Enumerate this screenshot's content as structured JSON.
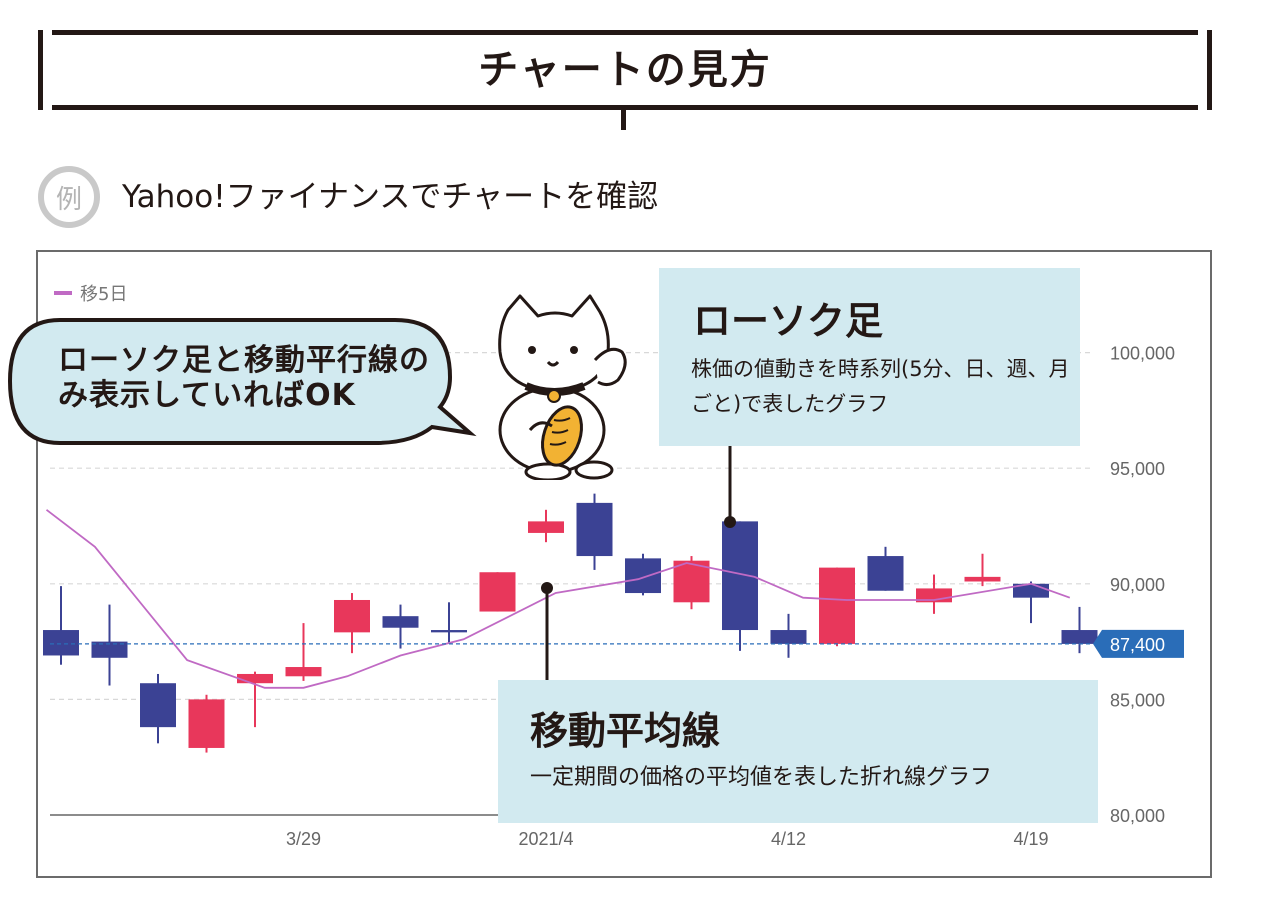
{
  "header": {
    "title": "チャートの見方"
  },
  "example": {
    "badge": "例",
    "text": "Yahoo!ファイナンスでチャートを確認"
  },
  "speech_bubble": {
    "text": "ローソク足と移動平行線のみ表示していればOK"
  },
  "callouts": {
    "candlestick": {
      "title": "ローソク足",
      "description": "株価の値動きを時系列(5分、日、週、月ごと)で表したグラフ"
    },
    "moving_average": {
      "title": "移動平均線",
      "description": "一定期間の価格の平均値を表した折れ線グラフ"
    }
  },
  "colors": {
    "up": "#e8375b",
    "down": "#3b4294",
    "ma": "#c06ac4",
    "price_tag": "#2a6db8",
    "callout_bg": "#d2eaf0",
    "bubble_bg": "#d2eaf0"
  },
  "chart_data": {
    "type": "candlestick",
    "title": "",
    "legend": [
      "移5日"
    ],
    "ylim": [
      80000,
      101500
    ],
    "yticks": [
      80000,
      85000,
      90000,
      95000,
      100000
    ],
    "ytick_labels": [
      "80,000",
      "85,000",
      "90,000",
      "95,000",
      "100,000"
    ],
    "xtick_labels": [
      {
        "label": "3/29",
        "index": 5
      },
      {
        "label": "2021/4",
        "index": 10
      },
      {
        "label": "4/12",
        "index": 15
      },
      {
        "label": "4/19",
        "index": 20
      }
    ],
    "current_price": 87400,
    "current_price_label": "87,400",
    "candles": [
      {
        "open": 88000,
        "close": 86900,
        "high": 89900,
        "low": 86500
      },
      {
        "open": 87500,
        "close": 86800,
        "high": 89100,
        "low": 85600
      },
      {
        "open": 85700,
        "close": 83800,
        "high": 86100,
        "low": 83100
      },
      {
        "open": 82900,
        "close": 85000,
        "high": 85200,
        "low": 82700
      },
      {
        "open": 85700,
        "close": 86100,
        "high": 86200,
        "low": 83800
      },
      {
        "open": 86000,
        "close": 86400,
        "high": 88300,
        "low": 85800
      },
      {
        "open": 87900,
        "close": 89300,
        "high": 89600,
        "low": 87000
      },
      {
        "open": 88600,
        "close": 88100,
        "high": 89100,
        "low": 87200
      },
      {
        "open": 88000,
        "close": 87900,
        "high": 89200,
        "low": 87400
      },
      {
        "open": 88800,
        "close": 90500,
        "high": 90500,
        "low": 88800
      },
      {
        "open": 92200,
        "close": 92700,
        "high": 93200,
        "low": 91800
      },
      {
        "open": 93500,
        "close": 91200,
        "high": 93900,
        "low": 90600
      },
      {
        "open": 91100,
        "close": 89600,
        "high": 91300,
        "low": 89500
      },
      {
        "open": 89200,
        "close": 91000,
        "high": 91200,
        "low": 88900
      },
      {
        "open": 92700,
        "close": 88000,
        "high": 92700,
        "low": 87100
      },
      {
        "open": 88000,
        "close": 87400,
        "high": 88700,
        "low": 86800
      },
      {
        "open": 87400,
        "close": 90700,
        "high": 90700,
        "low": 87300
      },
      {
        "open": 91200,
        "close": 89700,
        "high": 91600,
        "low": 89700
      },
      {
        "open": 89200,
        "close": 89800,
        "high": 90400,
        "low": 88700
      },
      {
        "open": 90100,
        "close": 90300,
        "high": 91300,
        "low": 89900
      },
      {
        "open": 90000,
        "close": 89400,
        "high": 90100,
        "low": 88300
      },
      {
        "open": 88000,
        "close": 87400,
        "high": 89000,
        "low": 87000
      }
    ],
    "moving_average": {
      "name": "移5日",
      "x": [
        -0.3,
        0.7,
        2.6,
        4.2,
        5.0,
        5.9,
        7.0,
        8.3,
        10.2,
        11.9,
        12.9,
        14.3,
        15.3,
        16.2,
        18.0,
        20.0,
        20.8
      ],
      "values": [
        93200,
        91600,
        86700,
        85500,
        85500,
        86000,
        86900,
        87600,
        89600,
        90200,
        90900,
        90300,
        89400,
        89300,
        89300,
        90000,
        89400
      ]
    }
  }
}
